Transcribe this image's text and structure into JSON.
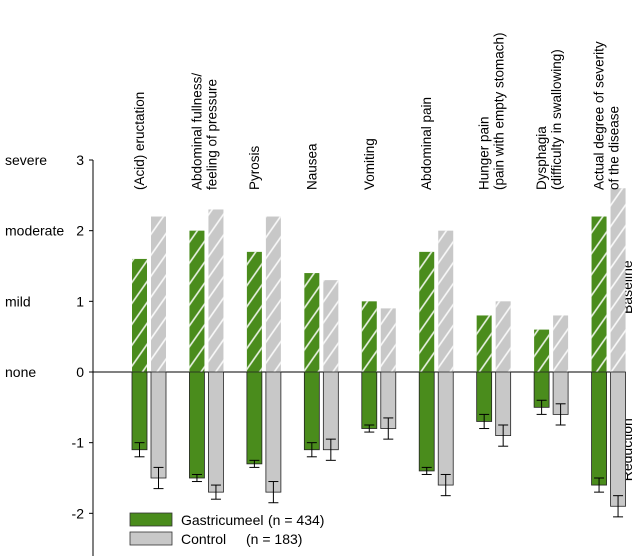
{
  "chart_data": {
    "type": "bar",
    "categories": [
      [
        "(Acid) eructation"
      ],
      [
        "Abdominal fullness/",
        "feeling of pressure"
      ],
      [
        "Pyrosis"
      ],
      [
        "Nausea"
      ],
      [
        "Vomiting"
      ],
      [
        "Abdominal pain"
      ],
      [
        "Hunger pain",
        "(pain with empty stomach)"
      ],
      [
        "Dysphagia",
        "(difficulty in swallowing)"
      ],
      [
        "Actual degree of severity",
        "of the disease"
      ]
    ],
    "series": [
      {
        "name": "Gastricumeel",
        "n_label": "(n = 434)",
        "color": "#4a8c1c",
        "baseline": [
          1.6,
          2.0,
          1.7,
          1.4,
          1.0,
          1.7,
          0.8,
          0.6,
          2.2
        ],
        "reduction": [
          -1.1,
          -1.5,
          -1.3,
          -1.1,
          -0.8,
          -1.4,
          -0.7,
          -0.5,
          -1.6
        ],
        "reduction_error": [
          0.1,
          0.05,
          0.05,
          0.1,
          0.05,
          0.05,
          0.1,
          0.1,
          0.1
        ]
      },
      {
        "name": "Control",
        "n_label": "(n = 183)",
        "color": "#c8c8c8",
        "baseline": [
          2.2,
          2.3,
          2.2,
          1.3,
          0.9,
          2.0,
          1.0,
          0.8,
          2.6
        ],
        "reduction": [
          -1.5,
          -1.7,
          -1.7,
          -1.1,
          -0.8,
          -1.6,
          -0.9,
          -0.6,
          -1.9
        ],
        "reduction_error": [
          0.15,
          0.1,
          0.15,
          0.15,
          0.15,
          0.15,
          0.15,
          0.15,
          0.15
        ]
      }
    ],
    "y_ticks": [
      {
        "value": 3,
        "label": "3",
        "word": "severe"
      },
      {
        "value": 2,
        "label": "2",
        "word": "moderate"
      },
      {
        "value": 1,
        "label": "1",
        "word": "mild"
      },
      {
        "value": 0,
        "label": "0",
        "word": "none"
      },
      {
        "value": -1,
        "label": "-1",
        "word": ""
      },
      {
        "value": -2,
        "label": "-2",
        "word": ""
      }
    ],
    "ylim": [
      -2.7,
      3
    ],
    "side_labels": {
      "top": "Baseline",
      "bottom": "Reduction"
    },
    "legend_position": "bottom-left",
    "grid": false
  }
}
